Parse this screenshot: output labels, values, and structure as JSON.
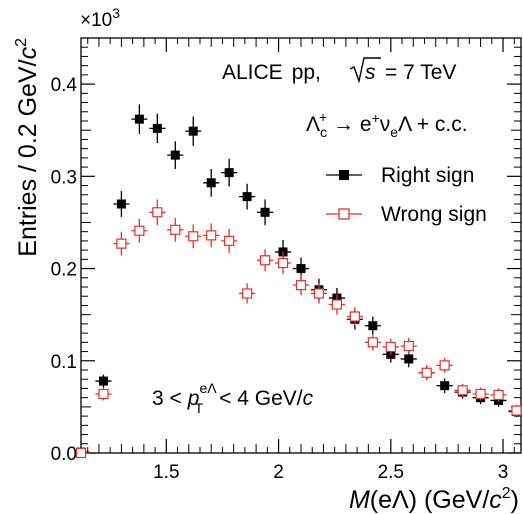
{
  "chart_data": {
    "type": "scatter",
    "collaboration": "ALICE",
    "system_label": "pp,",
    "sqrt_s_symbol": "s",
    "energy_label": "= 7 TeV",
    "decay_label": "Λc+ → e+νeΛ + c.c.",
    "decay_parts": {
      "lambda": "Λ",
      "c": "c",
      "plus": "+",
      "arrow": " → e",
      "nu": "ν",
      "e": "e",
      "tail": "Λ + c.c."
    },
    "kinematic_cut": "3 < pTeΛ < 4 GeV/c",
    "cut_parts": {
      "lo": "3 <",
      "p": "p",
      "sup": "eΛ",
      "sub": "T",
      "hi": "< 4 GeV/",
      "c": "c"
    },
    "xlabel": "M(eΛ) (GeV/c2)",
    "xlabel_parts": {
      "M": "M",
      "mid": "(eΛ) (GeV/",
      "c": "c",
      "exp": "2",
      "close": ")"
    },
    "ylabel": "Entries / 0.2 GeV/c2",
    "ylabel_parts": {
      "text": "Entries / 0.2 GeV/",
      "c": "c",
      "exp": "2"
    },
    "y_multiplier": "×10",
    "y_multiplier_exp": "3",
    "xlim": [
      1.12,
      3.08
    ],
    "ylim": [
      0,
      0.45
    ],
    "x_ticks": [
      1.5,
      2,
      2.5,
      3
    ],
    "x_tick_labels": [
      "1.5",
      "2",
      "2.5",
      "3"
    ],
    "y_ticks": [
      0,
      0.1,
      0.2,
      0.3,
      0.4
    ],
    "y_tick_labels": [
      "0.0",
      "0.1",
      "0.2",
      "0.3",
      "0.4"
    ],
    "bin_half_width": 0.036,
    "legend_position": "right",
    "series": [
      {
        "name": "Right sign",
        "color": "#000000",
        "marker": "filled-square",
        "x": [
          1.12,
          1.22,
          1.3,
          1.38,
          1.46,
          1.54,
          1.62,
          1.7,
          1.78,
          1.86,
          1.94,
          2.02,
          2.1,
          2.18,
          2.26,
          2.34,
          2.42,
          2.5,
          2.58,
          2.66,
          2.74,
          2.82,
          2.9,
          2.98,
          3.06
        ],
        "y": [
          0.001,
          0.078,
          0.27,
          0.362,
          0.352,
          0.323,
          0.349,
          0.293,
          0.304,
          0.278,
          0.261,
          0.218,
          0.2,
          0.177,
          0.168,
          0.145,
          0.138,
          0.107,
          0.102,
          0.087,
          0.073,
          0.066,
          0.06,
          0.057,
          0.045
        ],
        "yerr": [
          0.002,
          0.007,
          0.014,
          0.016,
          0.016,
          0.015,
          0.016,
          0.015,
          0.015,
          0.014,
          0.014,
          0.013,
          0.012,
          0.012,
          0.011,
          0.011,
          0.01,
          0.009,
          0.009,
          0.008,
          0.008,
          0.007,
          0.007,
          0.007,
          0.006
        ]
      },
      {
        "name": "Wrong sign",
        "color": "#e8302a",
        "marker": "open-square",
        "x": [
          1.12,
          1.22,
          1.3,
          1.38,
          1.46,
          1.54,
          1.62,
          1.7,
          1.78,
          1.86,
          1.94,
          2.02,
          2.1,
          2.18,
          2.26,
          2.34,
          2.42,
          2.5,
          2.58,
          2.66,
          2.74,
          2.82,
          2.9,
          2.98,
          3.06
        ],
        "y": [
          0.0,
          0.064,
          0.227,
          0.241,
          0.261,
          0.242,
          0.235,
          0.236,
          0.23,
          0.173,
          0.209,
          0.206,
          0.182,
          0.173,
          0.161,
          0.148,
          0.12,
          0.115,
          0.116,
          0.087,
          0.095,
          0.068,
          0.064,
          0.063,
          0.046
        ],
        "yerr": [
          0.001,
          0.007,
          0.013,
          0.013,
          0.014,
          0.013,
          0.013,
          0.013,
          0.013,
          0.011,
          0.012,
          0.012,
          0.011,
          0.011,
          0.011,
          0.01,
          0.009,
          0.009,
          0.009,
          0.008,
          0.008,
          0.007,
          0.007,
          0.007,
          0.006
        ]
      }
    ]
  }
}
